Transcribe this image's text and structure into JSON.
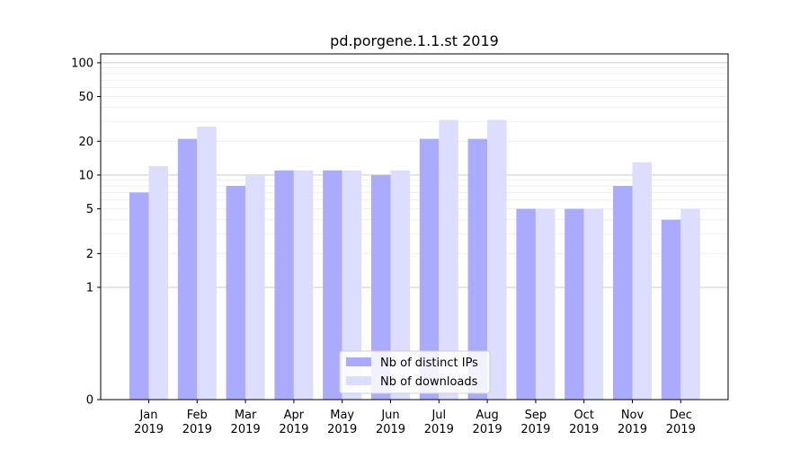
{
  "chart_data": {
    "type": "bar",
    "title": "pd.porgene.1.1.st 2019",
    "xlabel": "",
    "ylabel": "",
    "categories": [
      [
        "Jan",
        "2019"
      ],
      [
        "Feb",
        "2019"
      ],
      [
        "Mar",
        "2019"
      ],
      [
        "Apr",
        "2019"
      ],
      [
        "May",
        "2019"
      ],
      [
        "Jun",
        "2019"
      ],
      [
        "Jul",
        "2019"
      ],
      [
        "Aug",
        "2019"
      ],
      [
        "Sep",
        "2019"
      ],
      [
        "Oct",
        "2019"
      ],
      [
        "Nov",
        "2019"
      ],
      [
        "Dec",
        "2019"
      ]
    ],
    "series": [
      {
        "name": "Nb of distinct IPs",
        "color": "#aaaaff",
        "values": [
          7,
          21,
          8,
          11,
          11,
          10,
          21,
          21,
          5,
          5,
          8,
          4
        ]
      },
      {
        "name": "Nb of downloads",
        "color": "#ddddff",
        "values": [
          12,
          27,
          10,
          11,
          11,
          11,
          31,
          31,
          5,
          5,
          13,
          5
        ]
      }
    ],
    "y_scale": "symlog",
    "ylim": [
      0,
      120
    ],
    "yticks": [
      0,
      1,
      2,
      5,
      10,
      20,
      50,
      100
    ],
    "grid": true,
    "legend_position": "bottom-center"
  }
}
